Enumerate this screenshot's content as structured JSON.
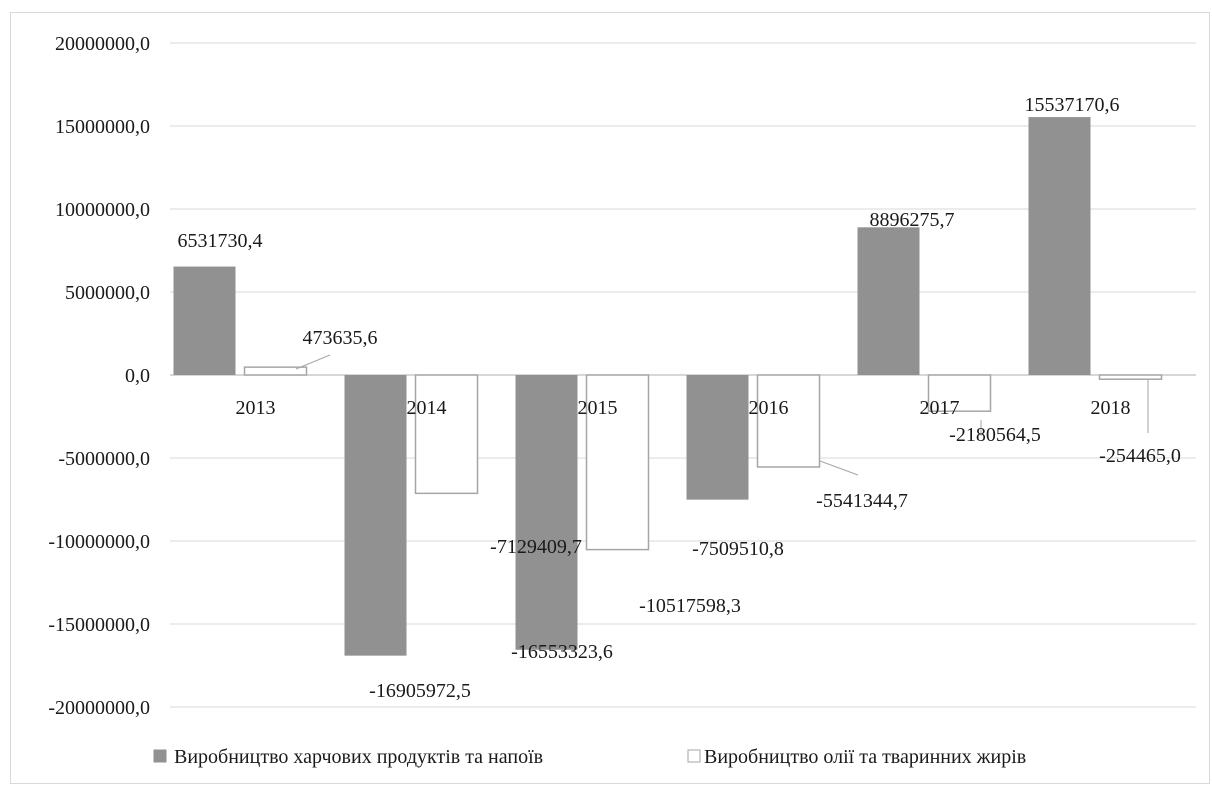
{
  "chart_data": {
    "type": "bar",
    "title": "",
    "xlabel": "",
    "ylabel": "",
    "categories": [
      "2013",
      "2014",
      "2015",
      "2016",
      "2017",
      "2018"
    ],
    "ylim": [
      -20000000,
      20000000
    ],
    "yticks": [
      20000000,
      15000000,
      10000000,
      5000000,
      0,
      -5000000,
      -10000000,
      -15000000,
      -20000000
    ],
    "ytick_labels": [
      "20000000,0",
      "15000000,0",
      "10000000,0",
      "5000000,0",
      "0,0",
      "-5000000,0",
      "-10000000,0",
      "-15000000,0",
      "-20000000,0"
    ],
    "grid": true,
    "legend_position": "bottom",
    "series": [
      {
        "name": "Виробництво харчових продуктів та напоїв",
        "color": "#919191",
        "values": [
          6531730.4,
          -16905972.5,
          -16553323.6,
          -7509510.8,
          8896275.7,
          15537170.6
        ],
        "labels": [
          "6531730,4",
          "-16905972,5",
          "-16553323,6",
          "-7509510,8",
          "8896275,7",
          "15537170,6"
        ]
      },
      {
        "name": "Виробництво олії та тваринних жирів",
        "color": "#ffffff",
        "stroke": "#a6a6a6",
        "values": [
          473635.6,
          -7129409.7,
          -10517598.3,
          -5541344.7,
          -2180564.5,
          -254465.0
        ],
        "labels": [
          "473635,6",
          "-7129409,7",
          "-10517598,3",
          "-5541344,7",
          "-2180564,5",
          "-254465,0"
        ]
      }
    ]
  }
}
